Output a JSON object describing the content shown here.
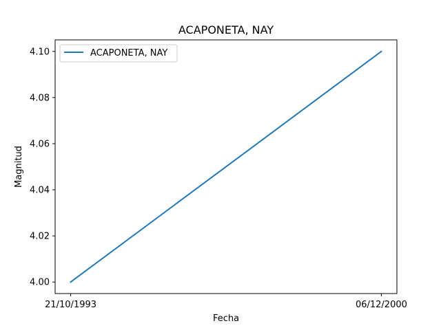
{
  "chart_data": {
    "type": "line",
    "title": "ACAPONETA, NAY",
    "xlabel": "Fecha",
    "ylabel": "Magnitud",
    "x": [
      "21/10/1993",
      "06/12/2000"
    ],
    "series": [
      {
        "name": "ACAPONETA, NAY",
        "values": [
          4.0,
          4.1
        ],
        "color": "#1f77b4"
      }
    ],
    "ylim": [
      3.995,
      4.105
    ],
    "yticks": [
      4.0,
      4.02,
      4.04,
      4.06,
      4.08,
      4.1
    ],
    "ytick_labels": [
      "4.00",
      "4.02",
      "4.04",
      "4.06",
      "4.08",
      "4.10"
    ],
    "xticks": [
      "21/10/1993",
      "06/12/2000"
    ],
    "legend_position": "upper-left",
    "grid": false
  }
}
